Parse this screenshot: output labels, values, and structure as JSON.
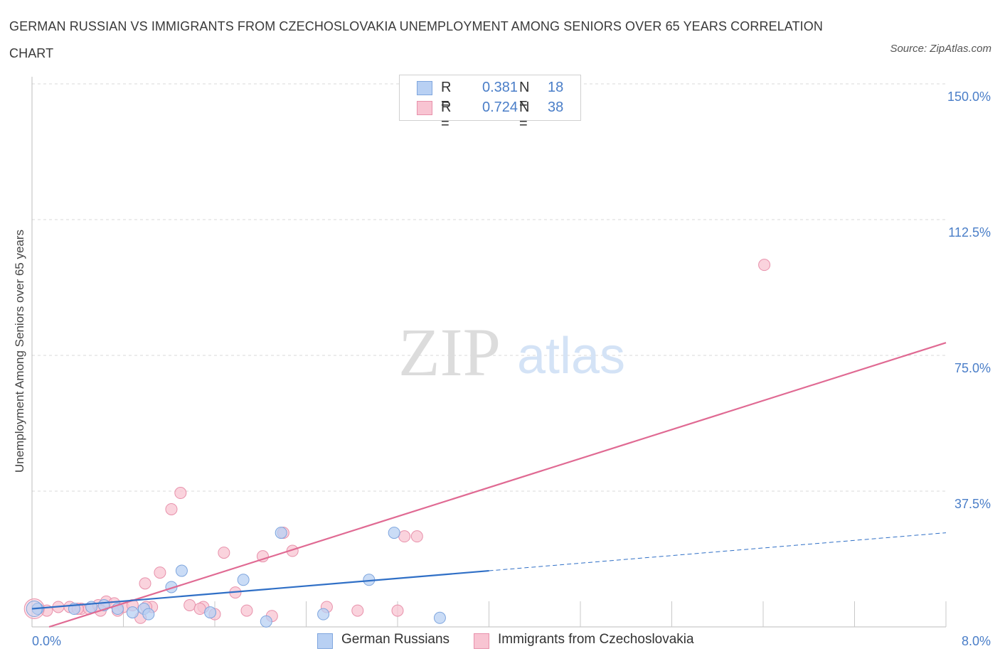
{
  "title": "GERMAN RUSSIAN VS IMMIGRANTS FROM CZECHOSLOVAKIA UNEMPLOYMENT AMONG SENIORS OVER 65 YEARS CORRELATION CHART",
  "source": "Source: ZipAtlas.com",
  "watermark": {
    "zip": "ZIP",
    "atlas": "atlas"
  },
  "legend": {
    "r_label": "R =",
    "n_label": "N =",
    "series1": {
      "r": "0.381",
      "n": "18"
    },
    "series2": {
      "r": "0.724",
      "n": "38"
    }
  },
  "colors": {
    "blue_fill": "#b8d0f3",
    "blue_stroke": "#7fa6de",
    "blue_line": "#2f6fc6",
    "pink_fill": "#f8c4d2",
    "pink_stroke": "#e891ab",
    "pink_line": "#e06a93",
    "axis_text": "#4a7ec8",
    "grid": "#d9d9d9"
  },
  "chart_data": {
    "type": "scatter",
    "title": "GERMAN RUSSIAN VS IMMIGRANTS FROM CZECHOSLOVAKIA UNEMPLOYMENT AMONG SENIORS OVER 65 YEARS CORRELATION CHART",
    "xlabel": "",
    "ylabel": "Unemployment Among Seniors over 65 years",
    "xlim": [
      0,
      8
    ],
    "ylim": [
      0,
      150
    ],
    "x_tick_labels": [
      "0.0%",
      "8.0%"
    ],
    "y_ticks": [
      37.5,
      75,
      112.5,
      150
    ],
    "y_tick_labels": [
      "37.5%",
      "75.0%",
      "112.5%",
      "150.0%"
    ],
    "grid": true,
    "series": [
      {
        "name": "German Russians",
        "r": 0.381,
        "n": 18,
        "points": [
          [
            0.05,
            5.0
          ],
          [
            0.37,
            5.0
          ],
          [
            0.52,
            5.5
          ],
          [
            0.63,
            6.0
          ],
          [
            0.75,
            5.0
          ],
          [
            0.88,
            4.0
          ],
          [
            0.98,
            5.0
          ],
          [
            1.02,
            3.5
          ],
          [
            1.22,
            11.0
          ],
          [
            1.31,
            15.5
          ],
          [
            1.56,
            4.0
          ],
          [
            1.85,
            13.0
          ],
          [
            2.05,
            1.5
          ],
          [
            2.18,
            26.0
          ],
          [
            2.55,
            3.5
          ],
          [
            2.95,
            13.0
          ],
          [
            3.17,
            26.0
          ],
          [
            3.57,
            2.5
          ]
        ],
        "trend": {
          "x0": 0.0,
          "y0": 5.0,
          "x1": 4.0,
          "y1": 15.5,
          "dash_to_x": 8.0,
          "dash_to_y": 26.0
        }
      },
      {
        "name": "Immigrants from Czechoslovakia",
        "r": 0.724,
        "n": 38,
        "points": [
          [
            0.05,
            5.0
          ],
          [
            0.13,
            4.5
          ],
          [
            0.23,
            5.5
          ],
          [
            0.33,
            5.5
          ],
          [
            0.43,
            5.0
          ],
          [
            0.5,
            5.0
          ],
          [
            0.58,
            6.0
          ],
          [
            0.65,
            7.0
          ],
          [
            0.72,
            6.5
          ],
          [
            0.8,
            5.5
          ],
          [
            0.88,
            6.0
          ],
          [
            0.95,
            2.5
          ],
          [
            0.99,
            12.0
          ],
          [
            1.05,
            5.5
          ],
          [
            1.12,
            15.0
          ],
          [
            1.22,
            32.5
          ],
          [
            1.3,
            37.0
          ],
          [
            1.38,
            6.0
          ],
          [
            1.5,
            5.5
          ],
          [
            1.47,
            5.0
          ],
          [
            1.6,
            3.5
          ],
          [
            1.68,
            20.5
          ],
          [
            1.78,
            9.5
          ],
          [
            1.88,
            4.5
          ],
          [
            2.02,
            19.5
          ],
          [
            2.1,
            3.0
          ],
          [
            2.2,
            26.0
          ],
          [
            2.28,
            21.0
          ],
          [
            2.58,
            5.5
          ],
          [
            2.85,
            4.5
          ],
          [
            3.2,
            4.5
          ],
          [
            3.26,
            25.0
          ],
          [
            3.37,
            25.0
          ],
          [
            6.41,
            100.0
          ],
          [
            0.75,
            4.5
          ],
          [
            0.6,
            4.5
          ],
          [
            1.0,
            5.5
          ],
          [
            0.4,
            5.0
          ]
        ],
        "trend": {
          "x0": 0.15,
          "y0": 0.0,
          "x1": 8.0,
          "y1": 78.5
        }
      }
    ]
  }
}
